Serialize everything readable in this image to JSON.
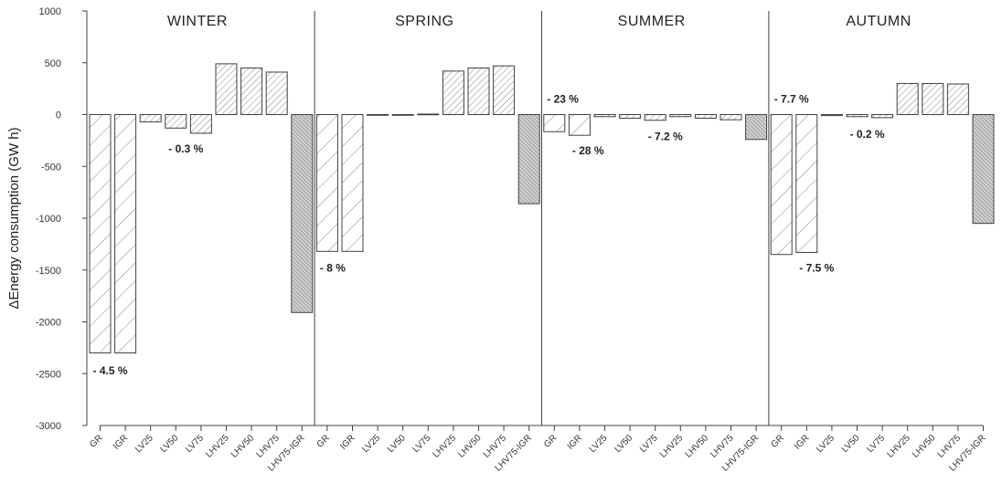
{
  "chart_data": {
    "type": "bar",
    "ylabel": "ΔEnergy consumption (GW h)",
    "ylim": [
      -3000,
      1000
    ],
    "yticks": [
      1000,
      500,
      0,
      -500,
      -1000,
      -1500,
      -2000,
      -2500,
      -3000
    ],
    "ytick_labels": [
      "1000",
      "500",
      "0",
      "-500",
      "-1000",
      "-1500",
      "-2000",
      "-2500",
      "-3000"
    ],
    "categories": [
      "GR",
      "IGR",
      "LV25",
      "LV50",
      "LV75",
      "LHV25",
      "LHV50",
      "LHV75",
      "LHV75-IGR"
    ],
    "category_hatch": [
      "sparse",
      "sparse",
      "medium",
      "medium",
      "medium",
      "medium",
      "medium",
      "medium",
      "dense"
    ],
    "grid": false,
    "panels": [
      {
        "title": "WINTER",
        "values": [
          -2300,
          -2300,
          -70,
          -130,
          -180,
          490,
          450,
          410,
          -1910
        ],
        "annotations": [
          {
            "text": "- 4.5 %",
            "x": "GR",
            "y": -2470
          },
          {
            "text": "- 0.3 %",
            "x": "LV50",
            "y": -330
          }
        ]
      },
      {
        "title": "SPRING",
        "values": [
          -1320,
          -1320,
          -5,
          -5,
          5,
          420,
          450,
          470,
          -860
        ],
        "annotations": [
          {
            "text": "- 8 %",
            "x": "GR",
            "y": -1480
          }
        ]
      },
      {
        "title": "SUMMER",
        "values": [
          -165,
          -200,
          -20,
          -35,
          -55,
          -20,
          -35,
          -50,
          -240
        ],
        "annotations": [
          {
            "text": "- 23 %",
            "x": "GR",
            "y": 150
          },
          {
            "text": "- 28 %",
            "x": "IGR",
            "y": -350
          },
          {
            "text": "- 7.2 %",
            "x": "LV75",
            "y": -210
          }
        ]
      },
      {
        "title": "AUTUMN",
        "values": [
          -1350,
          -1330,
          -10,
          -20,
          -30,
          300,
          300,
          295,
          -1050
        ],
        "annotations": [
          {
            "text": "- 7.7 %",
            "x": "GR",
            "y": 150
          },
          {
            "text": "- 7.5 %",
            "x": "IGR",
            "y": -1480
          },
          {
            "text": "- 0.2 %",
            "x": "LV50",
            "y": -190
          }
        ]
      }
    ]
  },
  "colors": {
    "bar_fill": "#ffffff",
    "bar_edge": "#404040",
    "hatch": "#707070",
    "dense_fill": "#d0d0d0",
    "axis": "#404040"
  }
}
